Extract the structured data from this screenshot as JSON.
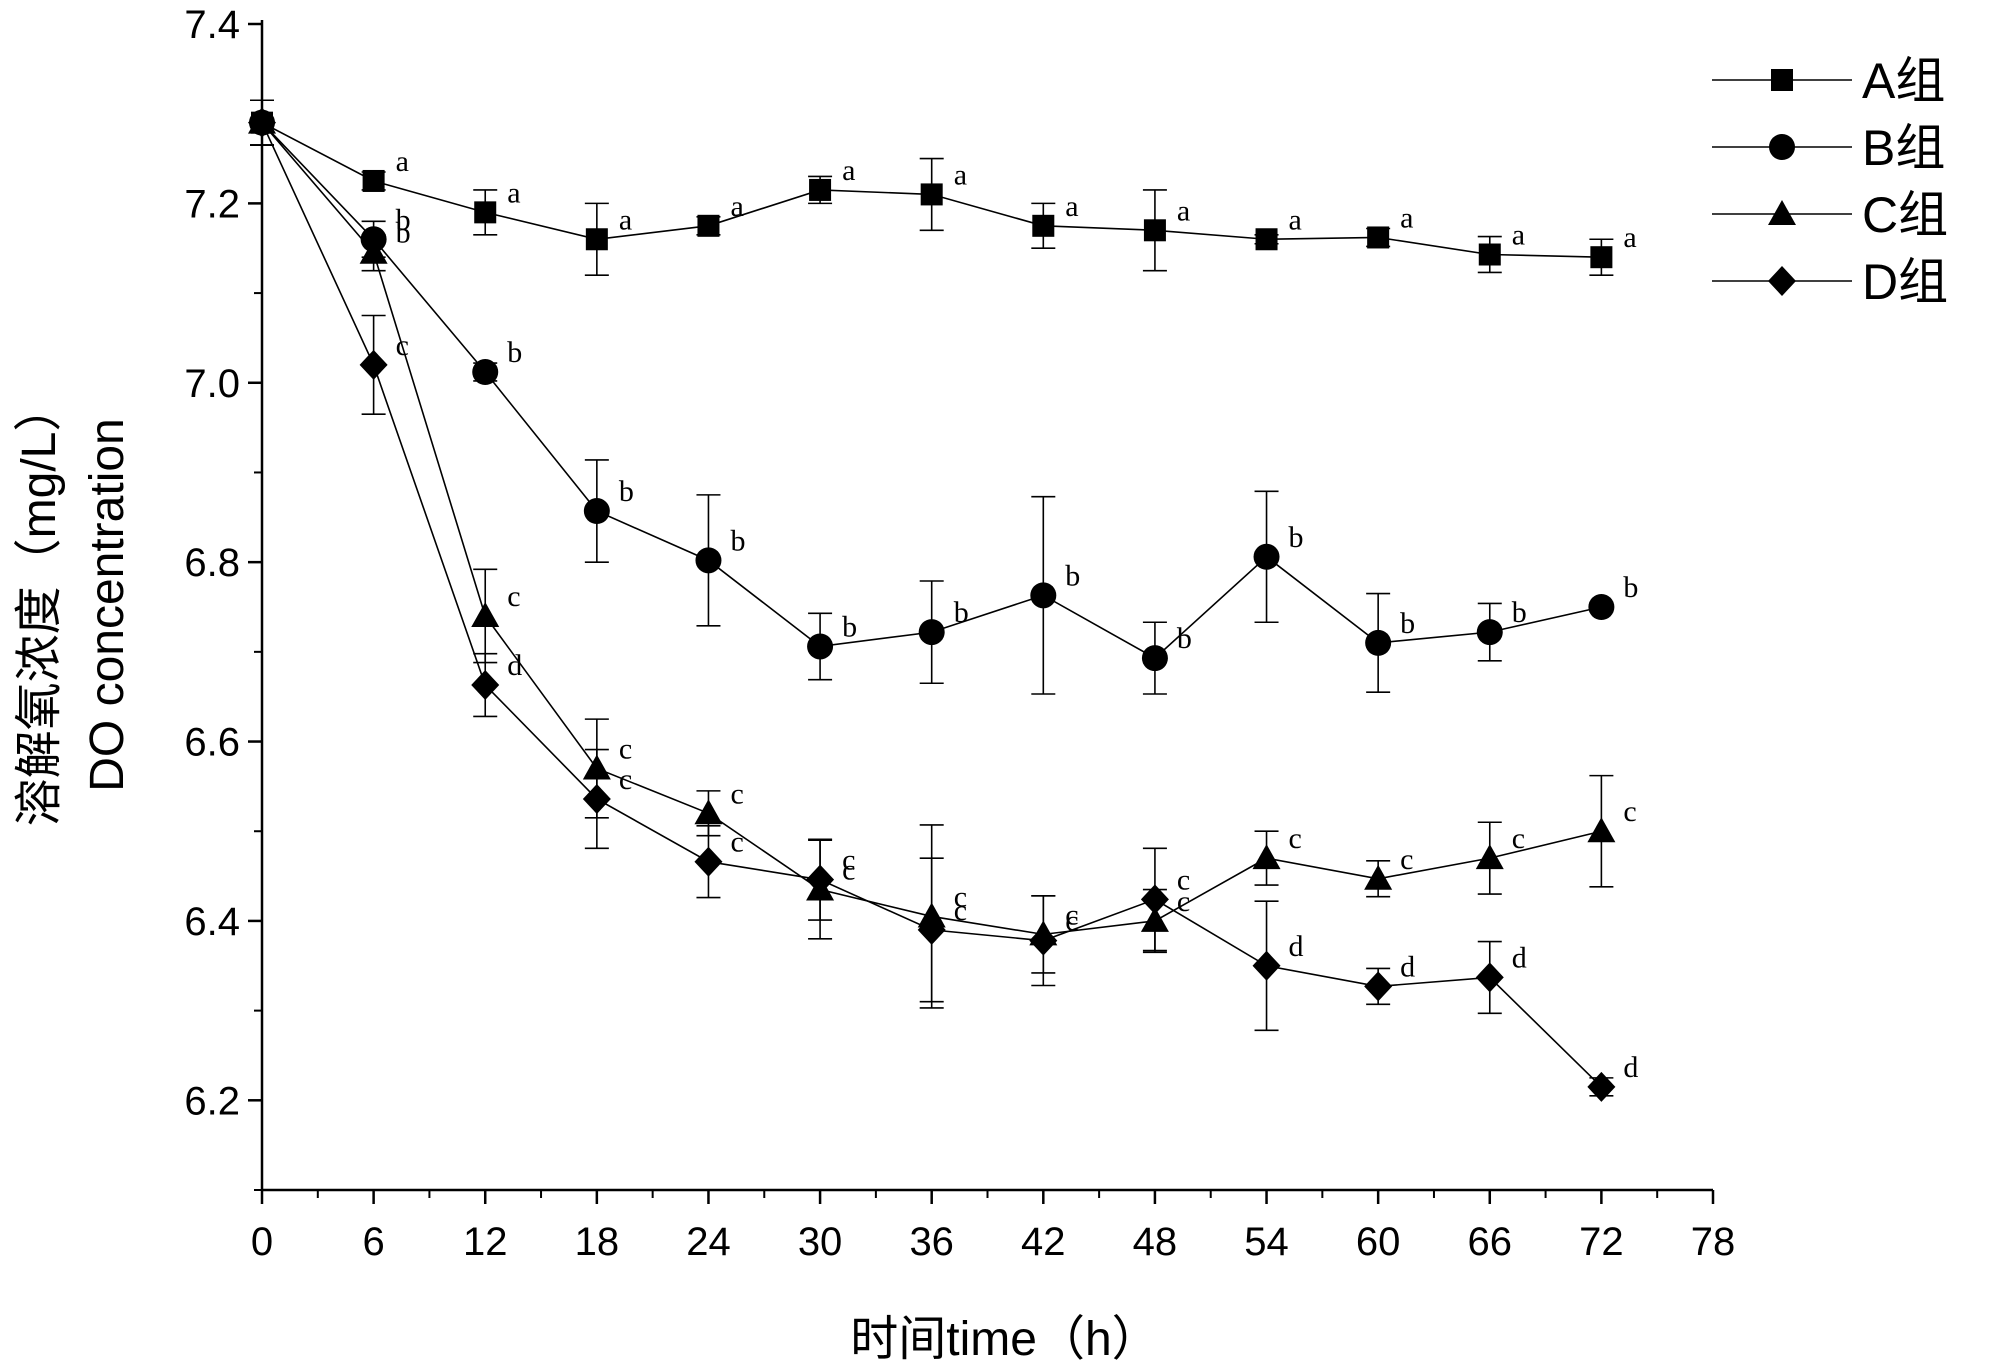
{
  "chart_data": {
    "type": "line",
    "xlabel": "时间time（h）",
    "ylabel_cn": "溶解氧浓度（mg/L）",
    "ylabel_en": "DO concentration",
    "x_ticks": [
      0,
      6,
      12,
      18,
      24,
      30,
      36,
      42,
      48,
      54,
      60,
      66,
      72,
      78
    ],
    "y_ticks": [
      6.2,
      6.4,
      6.6,
      6.8,
      7.0,
      7.2,
      7.4
    ],
    "y_tick_labels": [
      "6.2",
      "6.4",
      "6.6",
      "6.8",
      "7.0",
      "7.2",
      "7.4"
    ],
    "xlim": [
      0,
      78
    ],
    "ylim": [
      6.1,
      7.4
    ],
    "legend_position": "top-right",
    "x": [
      0,
      6,
      12,
      18,
      24,
      30,
      36,
      42,
      48,
      54,
      60,
      66,
      72
    ],
    "series": [
      {
        "name": "A组",
        "marker": "square",
        "values": [
          7.29,
          7.225,
          7.19,
          7.16,
          7.175,
          7.215,
          7.21,
          7.175,
          7.17,
          7.16,
          7.162,
          7.143,
          7.14
        ],
        "errors": [
          0.025,
          0.01,
          0.025,
          0.04,
          0.01,
          0.015,
          0.04,
          0.025,
          0.045,
          0.005,
          0.01,
          0.02,
          0.02
        ],
        "labels": [
          "",
          "a",
          "a",
          "a",
          "a",
          "a",
          "a",
          "a",
          "a",
          "a",
          "a",
          "a",
          "a"
        ]
      },
      {
        "name": "B组",
        "marker": "circle",
        "values": [
          7.29,
          7.16,
          7.012,
          6.857,
          6.802,
          6.706,
          6.722,
          6.763,
          6.693,
          6.806,
          6.71,
          6.722,
          6.75
        ],
        "errors": [
          0.025,
          0.02,
          0.01,
          0.057,
          0.073,
          0.037,
          0.057,
          0.11,
          0.04,
          0.073,
          0.055,
          0.032,
          0.005
        ],
        "labels": [
          "",
          "b",
          "b",
          "b",
          "b",
          "b",
          "b",
          "b",
          "b",
          "b",
          "b",
          "b",
          "b"
        ]
      },
      {
        "name": "C组",
        "marker": "triangle",
        "values": [
          7.29,
          7.145,
          6.74,
          6.57,
          6.52,
          6.435,
          6.405,
          6.385,
          6.4,
          6.47,
          6.447,
          6.47,
          6.5
        ],
        "errors": [
          0.025,
          0.02,
          0.052,
          0.055,
          0.025,
          0.055,
          0.102,
          0.043,
          0.035,
          0.03,
          0.02,
          0.04,
          0.062
        ],
        "labels": [
          "",
          "b",
          "c",
          "c",
          "c",
          "c",
          "c",
          "c",
          "c",
          "c",
          "c",
          "c",
          "c"
        ]
      },
      {
        "name": "D组",
        "marker": "diamond",
        "values": [
          7.29,
          7.02,
          6.663,
          6.536,
          6.466,
          6.446,
          6.39,
          6.378,
          6.424,
          6.35,
          6.327,
          6.337,
          6.215
        ],
        "errors": [
          0.025,
          0.055,
          0.035,
          0.055,
          0.04,
          0.045,
          0.08,
          0.05,
          0.057,
          0.072,
          0.02,
          0.04,
          0.01
        ],
        "labels": [
          "",
          "c",
          "d",
          "c",
          "c",
          "c",
          "c",
          "c",
          "c",
          "d",
          "d",
          "d",
          "d"
        ]
      }
    ]
  }
}
